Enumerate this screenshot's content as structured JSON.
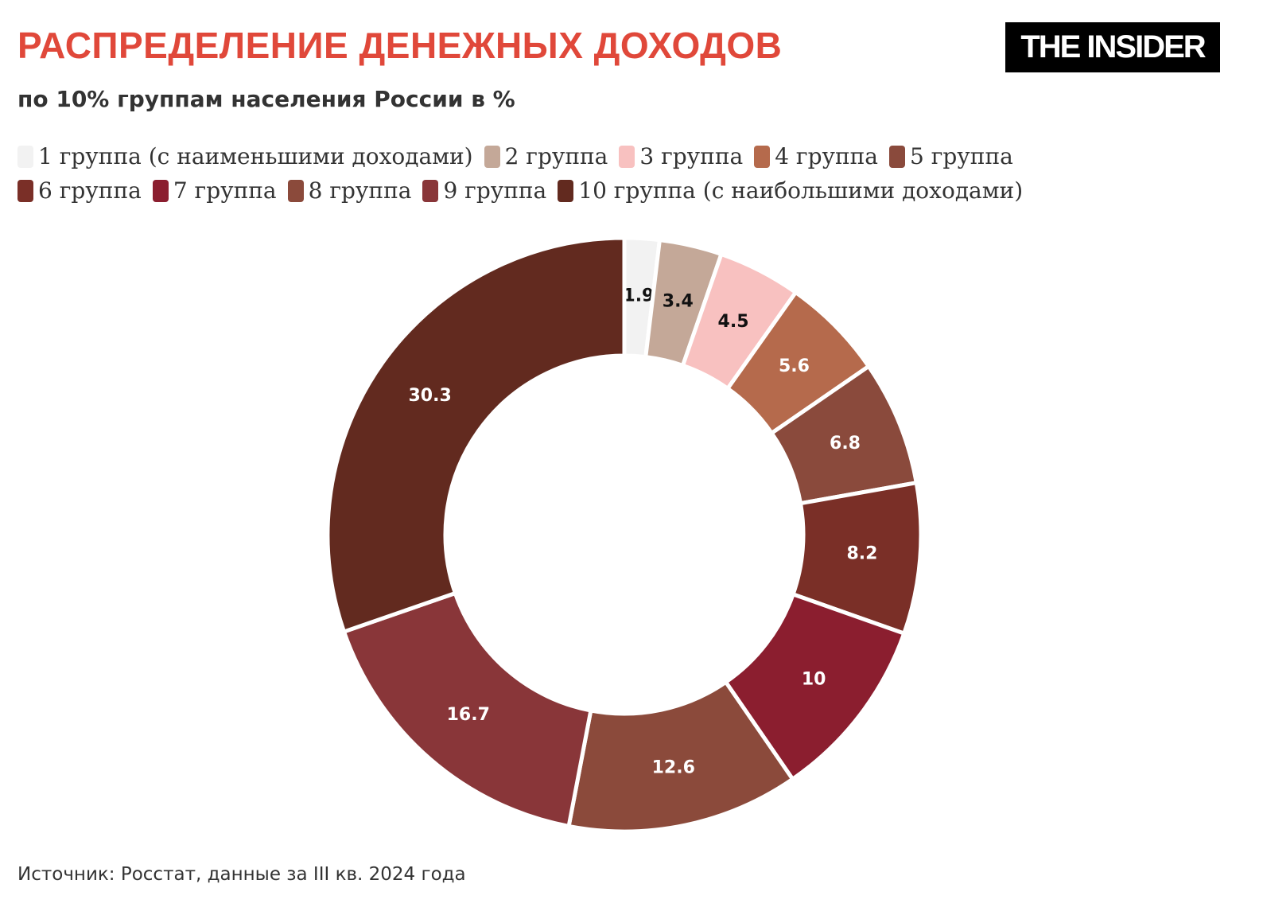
{
  "logo": "THE INSIDER",
  "chart_data": {
    "type": "donut",
    "title": "РАСПРЕДЕЛЕНИЕ ДЕНЕЖНЫХ ДОХОДОВ",
    "subtitle": "по 10% группам населения России в %",
    "categories": [
      "1 группа (с наименьшими доходами)",
      "2 группа",
      "3 группа",
      "4 группа",
      "5 группа",
      "6 группа",
      "7 группа",
      "8 группа",
      "9 группа",
      "10 группа (с наибольшими доходами)"
    ],
    "values": [
      1.9,
      3.4,
      4.5,
      5.6,
      6.8,
      8.2,
      10,
      12.6,
      16.7,
      30.3
    ],
    "colors": [
      "#f2f2f2",
      "#c4a898",
      "#f8c1c0",
      "#b56a4c",
      "#8a4a3c",
      "#7a2f27",
      "#8b1e2f",
      "#8b4a3b",
      "#893639",
      "#622a1f"
    ],
    "source": "Источник: Росстат, данные за III кв. 2024 года"
  }
}
